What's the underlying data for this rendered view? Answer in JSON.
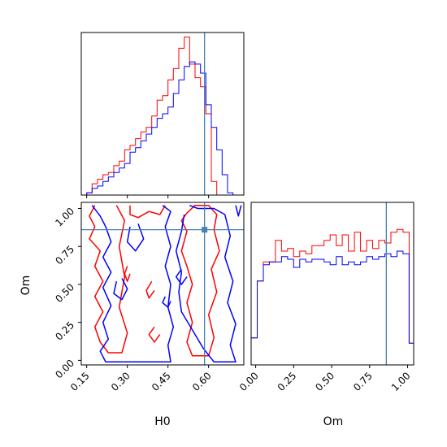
{
  "colors": {
    "series_red": "#ff0000",
    "series_blue": "#0000ff",
    "truth_line": "#4682b4",
    "axis": "#000000"
  },
  "chart_data": {
    "type": "corner",
    "parameters": [
      "H0",
      "Om"
    ],
    "truth": {
      "H0": 0.585,
      "Om": 0.86
    },
    "ranges": {
      "H0": [
        0.13,
        0.73
      ],
      "Om": [
        -0.03,
        1.04
      ]
    },
    "ticks": {
      "H0": {
        "values": [
          0.15,
          0.3,
          0.45,
          0.6
        ],
        "labels": [
          "0.15",
          "0.30",
          "0.45",
          "0.60"
        ]
      },
      "Om": {
        "values": [
          0.0,
          0.25,
          0.5,
          0.75,
          1.0
        ],
        "labels": [
          "0.00",
          "0.25",
          "0.50",
          "0.75",
          "1.00"
        ]
      }
    },
    "panels": [
      {
        "id": "H0-histogram",
        "type": "step-histogram",
        "x_param": "H0",
        "y_range": [
          0,
          72
        ],
        "bin_edges": [
          0.13,
          0.15,
          0.17,
          0.19,
          0.21,
          0.23,
          0.25,
          0.27,
          0.29,
          0.31,
          0.33,
          0.35,
          0.37,
          0.39,
          0.41,
          0.43,
          0.45,
          0.47,
          0.49,
          0.51,
          0.53,
          0.55,
          0.57,
          0.59,
          0.61,
          0.63,
          0.65,
          0.67,
          0.69,
          0.71,
          0.73
        ],
        "series": [
          {
            "color": "series_red",
            "counts": [
              0,
              1,
              5,
              7,
              9,
              10,
              13,
              15,
              20,
              22,
              25,
              28,
              30,
              35,
              42,
              44,
              51,
              56,
              65,
              70,
              58,
              52,
              48,
              36,
              6,
              0,
              0,
              0,
              0,
              0
            ]
          },
          {
            "color": "series_blue",
            "counts": [
              0,
              1,
              3,
              4,
              6,
              8,
              10,
              12,
              14,
              19,
              21,
              24,
              27,
              30,
              34,
              36,
              39,
              45,
              51,
              57,
              59,
              58,
              54,
              40,
              30,
              20,
              9,
              1,
              0,
              0
            ]
          }
        ]
      },
      {
        "id": "Om-histogram",
        "type": "step-histogram",
        "x_param": "Om",
        "y_range": [
          0,
          60
        ],
        "bin_edges": [
          -0.03,
          0.01,
          0.05,
          0.09,
          0.13,
          0.17,
          0.21,
          0.25,
          0.29,
          0.33,
          0.37,
          0.41,
          0.45,
          0.49,
          0.53,
          0.57,
          0.61,
          0.65,
          0.69,
          0.73,
          0.77,
          0.81,
          0.85,
          0.89,
          0.93,
          0.97,
          1.01,
          1.04
        ],
        "series": [
          {
            "color": "series_red",
            "counts": [
              10,
              31,
              38,
              38,
              46,
              42,
              43,
              40,
              42,
              41,
              44,
              44,
              46,
              48,
              44,
              48,
              42,
              49,
              42,
              46,
              43,
              46,
              45,
              49,
              50,
              49,
              8
            ]
          },
          {
            "color": "series_blue",
            "counts": [
              10,
              31,
              37,
              38,
              38,
              40,
              39,
              36,
              39,
              38,
              39,
              39,
              38,
              37,
              40,
              37,
              38,
              37,
              38,
              40,
              39,
              40,
              41,
              40,
              42,
              41,
              8
            ]
          }
        ]
      },
      {
        "id": "H0-Om-contour",
        "type": "contour",
        "x_param": "H0",
        "y_param": "Om",
        "series": [
          {
            "color": "series_red",
            "paths": [
              [
                [
                  0.18,
                  1.02
                ],
                [
                  0.16,
                  0.95
                ],
                [
                  0.18,
                  0.88
                ],
                [
                  0.16,
                  0.8
                ],
                [
                  0.2,
                  0.72
                ],
                [
                  0.18,
                  0.62
                ],
                [
                  0.21,
                  0.52
                ],
                [
                  0.18,
                  0.42
                ],
                [
                  0.21,
                  0.32
                ],
                [
                  0.18,
                  0.22
                ],
                [
                  0.2,
                  0.12
                ],
                [
                  0.23,
                  0.05
                ],
                [
                  0.28,
                  0.05
                ],
                [
                  0.3,
                  0.18
                ],
                [
                  0.27,
                  0.35
                ],
                [
                  0.29,
                  0.55
                ],
                [
                  0.27,
                  0.75
                ],
                [
                  0.29,
                  0.92
                ],
                [
                  0.26,
                  1.02
                ]
              ],
              [
                [
                  0.31,
                  1.02
                ],
                [
                  0.31,
                  0.96
                ],
                [
                  0.34,
                  0.94
                ],
                [
                  0.38,
                  0.98
                ],
                [
                  0.42,
                  0.96
                ],
                [
                  0.44,
                  1.02
                ]
              ],
              [
                [
                  0.3,
                  0.62
                ],
                [
                  0.29,
                  0.57
                ],
                [
                  0.3,
                  0.52
                ],
                [
                  0.31,
                  0.57
                ]
              ],
              [
                [
                  0.39,
                  0.52
                ],
                [
                  0.37,
                  0.46
                ],
                [
                  0.38,
                  0.41
                ],
                [
                  0.4,
                  0.46
                ]
              ],
              [
                [
                  0.4,
                  0.22
                ],
                [
                  0.38,
                  0.17
                ],
                [
                  0.4,
                  0.12
                ],
                [
                  0.42,
                  0.17
                ]
              ],
              [
                [
                  0.52,
                  0.97
                ],
                [
                  0.55,
                  1.02
                ],
                [
                  0.6,
                  1.02
                ],
                [
                  0.63,
                  0.96
                ],
                [
                  0.62,
                  0.86
                ],
                [
                  0.64,
                  0.72
                ],
                [
                  0.61,
                  0.6
                ],
                [
                  0.63,
                  0.45
                ],
                [
                  0.6,
                  0.3
                ],
                [
                  0.62,
                  0.15
                ],
                [
                  0.6,
                  0.03
                ],
                [
                  0.54,
                  0.03
                ],
                [
                  0.52,
                  0.12
                ],
                [
                  0.54,
                  0.25
                ],
                [
                  0.52,
                  0.38
                ],
                [
                  0.54,
                  0.5
                ],
                [
                  0.52,
                  0.62
                ],
                [
                  0.5,
                  0.72
                ],
                [
                  0.52,
                  0.85
                ],
                [
                  0.5,
                  0.92
                ],
                [
                  0.52,
                  0.97
                ]
              ]
            ]
          },
          {
            "color": "series_blue",
            "paths": [
              [
                [
                  0.17,
                  1.02
                ],
                [
                  0.2,
                  0.95
                ],
                [
                  0.22,
                  0.88
                ],
                [
                  0.24,
                  0.78
                ],
                [
                  0.21,
                  0.68
                ],
                [
                  0.24,
                  0.58
                ],
                [
                  0.21,
                  0.48
                ],
                [
                  0.24,
                  0.36
                ],
                [
                  0.21,
                  0.25
                ],
                [
                  0.23,
                  0.14
                ],
                [
                  0.2,
                  0.06
                ],
                [
                  0.22,
                  -0.01
                ],
                [
                  0.46,
                  -0.01
                ],
                [
                  0.45,
                  0.1
                ],
                [
                  0.47,
                  0.22
                ],
                [
                  0.45,
                  0.35
                ],
                [
                  0.46,
                  0.5
                ],
                [
                  0.44,
                  0.62
                ],
                [
                  0.46,
                  0.75
                ],
                [
                  0.44,
                  0.88
                ],
                [
                  0.46,
                  0.98
                ],
                [
                  0.43,
                  1.02
                ]
              ],
              [
                [
                  0.31,
                  0.88
                ],
                [
                  0.3,
                  0.78
                ],
                [
                  0.33,
                  0.72
                ],
                [
                  0.36,
                  0.8
                ],
                [
                  0.34,
                  0.9
                ]
              ],
              [
                [
                  0.26,
                  0.52
                ],
                [
                  0.25,
                  0.44
                ],
                [
                  0.28,
                  0.4
                ],
                [
                  0.3,
                  0.47
                ],
                [
                  0.28,
                  0.54
                ]
              ],
              [
                [
                  0.5,
                  0.6
                ],
                [
                  0.48,
                  0.55
                ],
                [
                  0.5,
                  0.5
                ],
                [
                  0.52,
                  0.55
                ]
              ],
              [
                [
                  0.44,
                  0.42
                ],
                [
                  0.43,
                  0.38
                ],
                [
                  0.45,
                  0.35
                ],
                [
                  0.46,
                  0.39
                ]
              ],
              [
                [
                  0.53,
                  1.02
                ],
                [
                  0.56,
                  1.0
                ],
                [
                  0.62,
                  1.0
                ],
                [
                  0.66,
                  0.96
                ],
                [
                  0.68,
                  0.82
                ],
                [
                  0.66,
                  0.68
                ],
                [
                  0.69,
                  0.52
                ],
                [
                  0.67,
                  0.38
                ],
                [
                  0.7,
                  0.24
                ],
                [
                  0.68,
                  0.1
                ],
                [
                  0.7,
                  -0.01
                ],
                [
                  0.62,
                  -0.01
                ],
                [
                  0.58,
                  0.08
                ],
                [
                  0.54,
                  0.2
                ],
                [
                  0.5,
                  0.32
                ],
                [
                  0.49,
                  0.45
                ],
                [
                  0.5,
                  0.58
                ],
                [
                  0.48,
                  0.72
                ],
                [
                  0.5,
                  0.85
                ],
                [
                  0.51,
                  0.96
                ]
              ],
              [
                [
                  0.7,
                  1.02
                ],
                [
                  0.71,
                  0.95
                ],
                [
                  0.72,
                  1.02
                ]
              ]
            ]
          }
        ]
      }
    ]
  }
}
